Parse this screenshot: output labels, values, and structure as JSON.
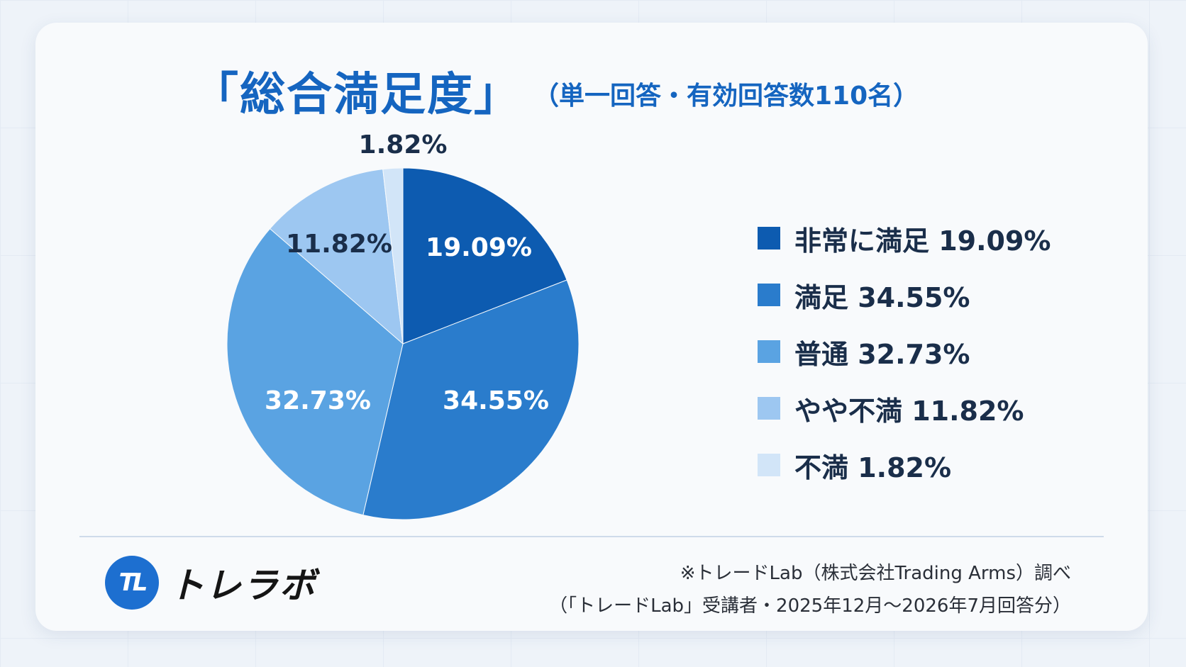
{
  "title": "「総合満足度」",
  "subtitle": "（単一回答・有効回答数110名）",
  "chart_data": {
    "type": "pie",
    "categories": [
      "非常に満足",
      "満足",
      "普通",
      "やや不満",
      "不満"
    ],
    "values": [
      19.09,
      34.55,
      32.73,
      11.82,
      1.82
    ],
    "labels": [
      "19.09%",
      "34.55%",
      "32.73%",
      "11.82%",
      "1.82%"
    ],
    "colors": [
      "#0d5bb0",
      "#2a7ccc",
      "#5aa3e2",
      "#9dc7f1",
      "#d2e5f8"
    ],
    "label_colors": [
      "#ffffff",
      "#ffffff",
      "#ffffff",
      "#1a2e4a",
      "#1a2e4a"
    ],
    "legend_placement": "right"
  },
  "legend": [
    {
      "text": "非常に満足 19.09%",
      "color": "#0d5bb0"
    },
    {
      "text": "満足 34.55%",
      "color": "#2a7ccc"
    },
    {
      "text": "普通 32.73%",
      "color": "#5aa3e2"
    },
    {
      "text": "やや不満 11.82%",
      "color": "#9dc7f1"
    },
    {
      "text": "不満 1.82%",
      "color": "#d2e5f8"
    }
  ],
  "logo": {
    "mark": "TL",
    "text": "トレラボ"
  },
  "note": {
    "line1": "※トレードLab（株式会社Trading Arms）調べ",
    "line2": "（「トレードLab」受講者・2025年12月〜2026年7月回答分）"
  }
}
